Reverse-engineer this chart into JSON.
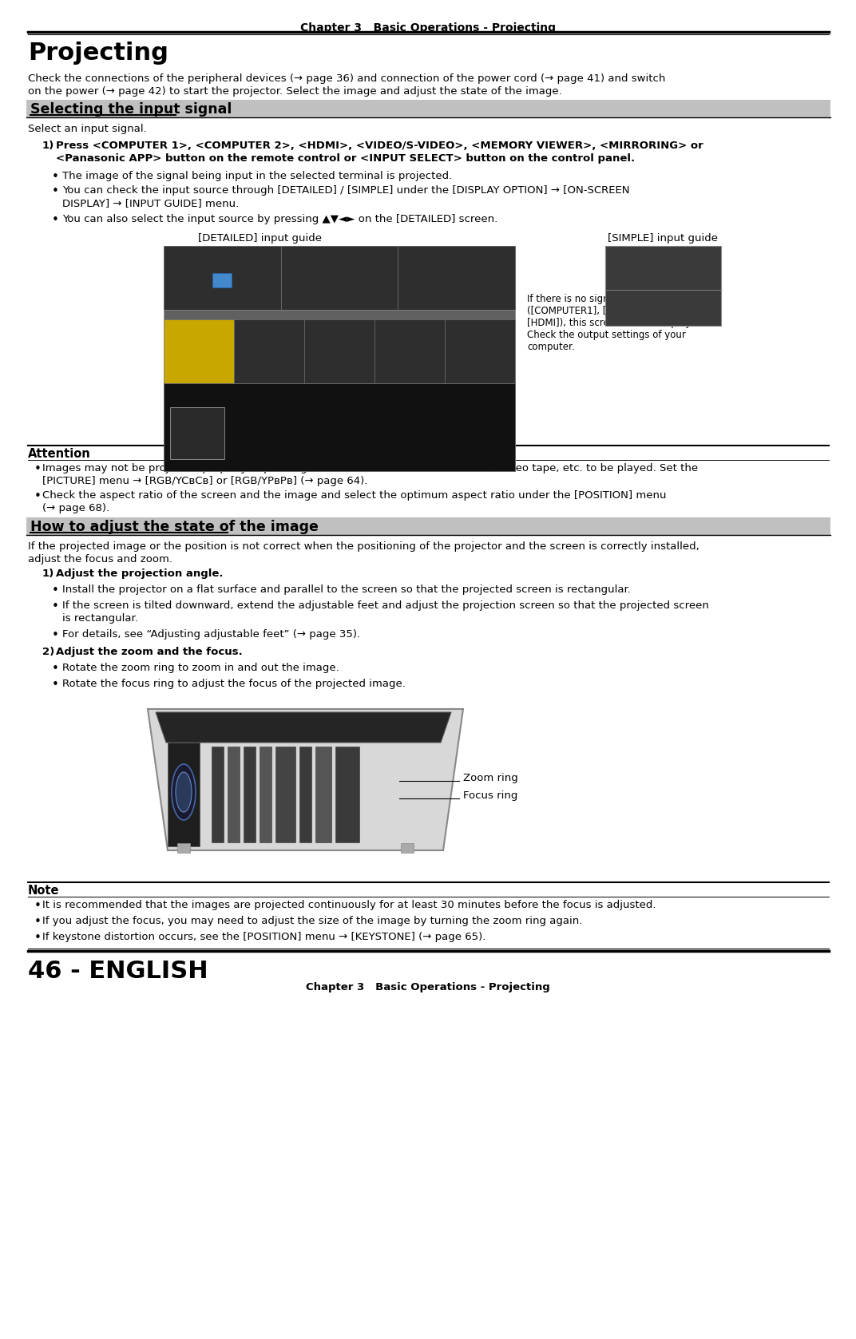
{
  "page_title": "Chapter 3   Basic Operations - Projecting",
  "main_title": "Projecting",
  "intro_line1": "Check the connections of the peripheral devices (→ page 36) and connection of the power cord (→ page 41) and switch",
  "intro_line2": "on the power (→ page 42) to start the projector. Select the image and adjust the state of the image.",
  "section1_title": "Selecting the input signal",
  "section1_subtitle": "Select an input signal.",
  "step1_label": "1)",
  "step1_line1": "Press <COMPUTER 1>, <COMPUTER 2>, <HDMI>, <VIDEO/S-VIDEO>, <MEMORY VIEWER>, <MIRRORING> or",
  "step1_line2": "<Panasonic APP> button on the remote control or <INPUT SELECT> button on the control panel.",
  "bullet1": "The image of the signal being input in the selected terminal is projected.",
  "bullet2_line1": "You can check the input source through [DETAILED] / [SIMPLE] under the [DISPLAY OPTION] → [ON-SCREEN",
  "bullet2_line2": "DISPLAY] → [INPUT GUIDE] menu.",
  "bullet3": "You can also select the input source by pressing ▲▼◄► on the [DETAILED] screen.",
  "detailed_label": "[DETAILED] input guide",
  "simple_label": "[SIMPLE] input guide",
  "no_signal_line1": "If there is no signal input",
  "no_signal_line2": "([COMPUTER1], [COMPUTER2] or",
  "no_signal_line3": "[HDMI]), this screen will be displayed.",
  "no_signal_line4": "Check the output settings of your",
  "no_signal_line5": "computer.",
  "attention_title": "Attention",
  "att_bullet1_line1": "Images may not be projected properly depending on the connected device and DVD, video tape, etc. to be played. Set the",
  "att_bullet1_line2": "[PICTURE] menu → [RGB/YCвCв] or [RGB/YPвPв] (→ page 64).",
  "att_bullet2_line1": "Check the aspect ratio of the screen and the image and select the optimum aspect ratio under the [POSITION] menu",
  "att_bullet2_line2": "(→ page 68).",
  "section2_title": "How to adjust the state of the image",
  "section2_intro1": "If the projected image or the position is not correct when the positioning of the projector and the screen is correctly installed,",
  "section2_intro2": "adjust the focus and zoom.",
  "s2step1_label": "1)",
  "s2step1_text": "Adjust the projection angle.",
  "s2step1_b1": "Install the projector on a flat surface and parallel to the screen so that the projected screen is rectangular.",
  "s2step1_b2_line1": "If the screen is tilted downward, extend the adjustable feet and adjust the projection screen so that the projected screen",
  "s2step1_b2_line2": "is rectangular.",
  "s2step1_b3": "For details, see “Adjusting adjustable feet” (→ page 35).",
  "s2step2_label": "2)",
  "s2step2_text": "Adjust the zoom and the focus.",
  "s2step2_b1": "Rotate the zoom ring to zoom in and out the image.",
  "s2step2_b2": "Rotate the focus ring to adjust the focus of the projected image.",
  "zoom_ring_label": "Zoom ring",
  "focus_ring_label": "Focus ring",
  "note_title": "Note",
  "note_b1": "It is recommended that the images are projected continuously for at least 30 minutes before the focus is adjusted.",
  "note_b2": "If you adjust the focus, you may need to adjust the size of the image by turning the zoom ring again.",
  "note_b3": "If keystone distortion occurs, see the [POSITION] menu → [KEYSTONE] (→ page 65).",
  "page_footer": "46 - ENGLISH",
  "chapter_footer": "Chapter 3   Basic Operations - Projecting",
  "bg_color": "#ffffff",
  "section_bg": "#c0c0c0",
  "dark_bg": "#2e2e2e"
}
